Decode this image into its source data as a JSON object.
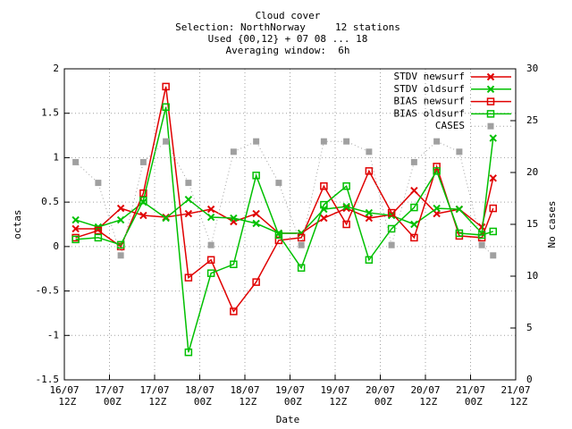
{
  "chart_data": {
    "type": "line",
    "title_lines": [
      "Cloud cover",
      "Selection: NorthNorway     12 stations",
      "Used {00,12} + 07 08 ... 18",
      "Averaging window:  6h"
    ],
    "xlabel": "Date",
    "ylabel": "octas",
    "y2label": "No cases",
    "x": [
      3,
      9,
      15,
      21,
      27,
      33,
      39,
      45,
      51,
      57,
      63,
      69,
      75,
      81,
      87,
      93,
      99,
      105,
      111,
      114
    ],
    "xlim": [
      0,
      120
    ],
    "xticks": [
      {
        "value": 0,
        "label": "16/07 12Z"
      },
      {
        "value": 12,
        "label": "17/07 00Z"
      },
      {
        "value": 24,
        "label": "17/07 12Z"
      },
      {
        "value": 36,
        "label": "18/07 00Z"
      },
      {
        "value": 48,
        "label": "18/07 12Z"
      },
      {
        "value": 60,
        "label": "19/07 00Z"
      },
      {
        "value": 72,
        "label": "19/07 12Z"
      },
      {
        "value": 84,
        "label": "20/07 00Z"
      },
      {
        "value": 96,
        "label": "20/07 12Z"
      },
      {
        "value": 108,
        "label": "21/07 00Z"
      },
      {
        "value": 120,
        "label": "21/07 12Z"
      }
    ],
    "ylim": [
      -1.5,
      2
    ],
    "yticks": [
      -1.5,
      -1,
      -0.5,
      0,
      0.5,
      1,
      1.5,
      2
    ],
    "y2lim": [
      0,
      30
    ],
    "y2ticks": [
      0,
      5,
      10,
      15,
      20,
      25,
      30
    ],
    "grid": true,
    "legend": "top-right",
    "series": [
      {
        "name": "STDV newsurf",
        "color": "#e00000",
        "marker": "x",
        "dash": "solid",
        "values": [
          0.2,
          0.2,
          0.43,
          0.35,
          0.33,
          0.37,
          0.42,
          0.28,
          0.37,
          0.15,
          0.15,
          0.32,
          0.43,
          0.32,
          0.36,
          0.63,
          0.37,
          0.42,
          0.22,
          0.77
        ]
      },
      {
        "name": "STDV oldsurf",
        "color": "#00c000",
        "marker": "x",
        "dash": "solid",
        "values": [
          0.3,
          0.22,
          0.3,
          0.5,
          0.32,
          0.53,
          0.33,
          0.32,
          0.26,
          0.15,
          0.15,
          0.42,
          0.45,
          0.38,
          0.35,
          0.25,
          0.43,
          0.42,
          0.15,
          1.22
        ]
      },
      {
        "name": "BIAS newsurf",
        "color": "#e00000",
        "marker": "square",
        "dash": "solid",
        "values": [
          0.1,
          0.18,
          0,
          0.6,
          1.8,
          -0.35,
          -0.15,
          -0.73,
          -0.4,
          0.07,
          0.1,
          0.68,
          0.25,
          0.85,
          0.38,
          0.1,
          0.9,
          0.12,
          0.1,
          0.43
        ]
      },
      {
        "name": "BIAS oldsurf",
        "color": "#00c000",
        "marker": "square",
        "dash": "solid",
        "values": [
          0.08,
          0.1,
          0.02,
          0.52,
          1.57,
          -1.19,
          -0.3,
          -0.2,
          0.8,
          0.13,
          -0.24,
          0.47,
          0.68,
          -0.15,
          0.2,
          0.44,
          0.85,
          0.15,
          0.13,
          0.17
        ]
      },
      {
        "name": "CASES",
        "color": "#a0a0a0",
        "marker": "filled-square",
        "dash": "dotted",
        "axis": "y2",
        "values": [
          21,
          19,
          12,
          21,
          23,
          19,
          13,
          22,
          23,
          19,
          13,
          23,
          23,
          22,
          13,
          21,
          23,
          22,
          13,
          12
        ]
      }
    ]
  }
}
